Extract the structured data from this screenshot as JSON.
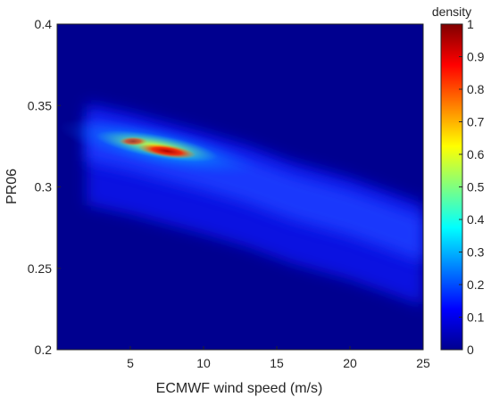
{
  "chart_data": {
    "type": "heatmap",
    "xlabel": "ECMWF wind speed (m/s)",
    "ylabel": "PR06",
    "xlim": [
      0,
      25
    ],
    "ylim": [
      0.2,
      0.4
    ],
    "x_ticks": [
      "5",
      "10",
      "15",
      "20",
      "25"
    ],
    "y_ticks": [
      "0.2",
      "0.25",
      "0.3",
      "0.35",
      "0.4"
    ],
    "colorbar": {
      "label": "density",
      "range": [
        0,
        1
      ],
      "ticks": [
        "0",
        "0.1",
        "0.2",
        "0.3",
        "0.4",
        "0.5",
        "0.6",
        "0.7",
        "0.8",
        "0.9",
        "1"
      ],
      "colormap": "jet"
    },
    "density_peak": {
      "x": 7.5,
      "y": 0.322,
      "value": 1.0
    },
    "ridge": [
      {
        "x": 2,
        "y": 0.334
      },
      {
        "x": 5,
        "y": 0.328
      },
      {
        "x": 7.5,
        "y": 0.322
      },
      {
        "x": 10,
        "y": 0.316
      },
      {
        "x": 13,
        "y": 0.308
      },
      {
        "x": 16,
        "y": 0.298
      },
      {
        "x": 20,
        "y": 0.288
      },
      {
        "x": 25,
        "y": 0.272
      }
    ],
    "background_color": "#00008f"
  }
}
